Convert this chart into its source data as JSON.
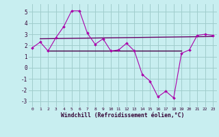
{
  "hours": [
    0,
    1,
    2,
    3,
    4,
    5,
    6,
    7,
    8,
    9,
    10,
    11,
    12,
    13,
    14,
    15,
    16,
    17,
    18,
    19,
    20,
    21,
    22,
    23
  ],
  "windchill": [
    1.8,
    2.3,
    1.5,
    2.7,
    3.7,
    5.1,
    5.1,
    3.1,
    2.1,
    2.6,
    1.5,
    1.6,
    2.2,
    1.5,
    -0.6,
    -1.2,
    -2.6,
    -2.1,
    -2.7,
    1.3,
    1.6,
    2.9,
    3.0,
    2.9
  ],
  "ref_line1_x": [
    1,
    23
  ],
  "ref_line1_y": [
    2.6,
    2.8
  ],
  "ref_line2_x": [
    2,
    19
  ],
  "ref_line2_y": [
    1.5,
    1.5
  ],
  "line_color": "#aa00aa",
  "ref_color1": "#660066",
  "ref_color2": "#440044",
  "bg_color": "#c8eef0",
  "grid_color": "#a0cccc",
  "xlabel": "Windchill (Refroidissement éolien,°C)",
  "ylim": [
    -3.5,
    5.7
  ],
  "xlim": [
    -0.5,
    23.5
  ],
  "yticks": [
    -3,
    -2,
    -1,
    0,
    1,
    2,
    3,
    4,
    5
  ],
  "xticks": [
    0,
    1,
    2,
    3,
    4,
    5,
    6,
    7,
    8,
    9,
    10,
    11,
    12,
    13,
    14,
    15,
    16,
    17,
    18,
    19,
    20,
    21,
    22,
    23
  ]
}
